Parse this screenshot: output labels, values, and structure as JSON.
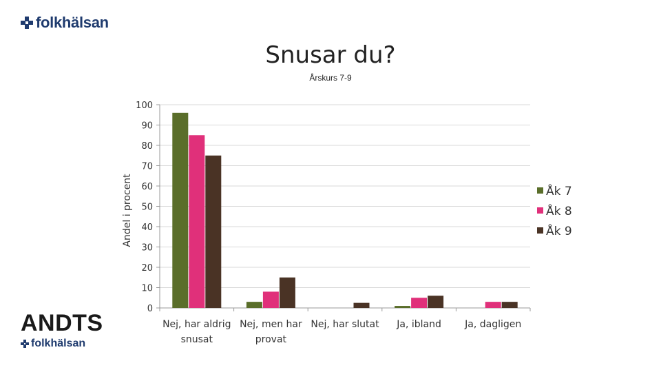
{
  "brand": {
    "top_logo_text": "folkhälsan",
    "bottom_logo_title": "ANDTS",
    "bottom_logo_text": "folkhälsan"
  },
  "chart_data": {
    "type": "bar",
    "title": "Snusar du?",
    "subtitle": "Årskurs 7-9",
    "ylabel": "Andel i procent",
    "xlabel": "",
    "ylim": [
      0,
      100
    ],
    "yticks": [
      0,
      10,
      20,
      30,
      40,
      50,
      60,
      70,
      80,
      90,
      100
    ],
    "grid": true,
    "legend_position": "right",
    "categories": [
      "Nej, har aldrig snusat",
      "Nej, men har provat",
      "Nej, har slutat",
      "Ja, ibland",
      "Ja, dagligen"
    ],
    "category_lines": [
      [
        "Nej, har aldrig",
        "snusat"
      ],
      [
        "Nej, men har",
        "provat"
      ],
      [
        "Nej, har slutat"
      ],
      [
        "Ja, ibland"
      ],
      [
        "Ja, dagligen"
      ]
    ],
    "series": [
      {
        "name": "Åk 7",
        "color": "#5a6e2a",
        "values": [
          96,
          3,
          0,
          1,
          0
        ]
      },
      {
        "name": "Åk 8",
        "color": "#e0307a",
        "values": [
          85,
          8,
          0,
          5,
          3
        ]
      },
      {
        "name": "Åk 9",
        "color": "#4a3325",
        "values": [
          75,
          15,
          2.5,
          6,
          3
        ]
      }
    ]
  }
}
